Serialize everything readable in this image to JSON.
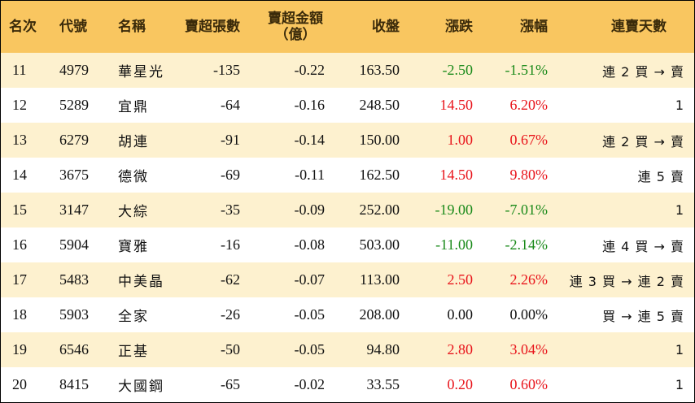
{
  "colors": {
    "header_bg": "#f9c660",
    "alt_row_bg": "#fdf1cf",
    "up": "#e8141b",
    "down": "#1a8a1a",
    "flat": "#111111"
  },
  "headers": {
    "rank": "名次",
    "code": "代號",
    "name": "名稱",
    "lots": "賣超張數",
    "amount_line1": "賣超金額",
    "amount_line2": "（億）",
    "close": "收盤",
    "change": "漲跌",
    "pct": "漲幅",
    "streak": "連賣天數"
  },
  "rows": [
    {
      "rank": "11",
      "code": "4979",
      "name": "華星光",
      "lots": "-135",
      "amount": "-0.22",
      "close": "163.50",
      "change": "-2.50",
      "pct": "-1.51%",
      "streak": "連 2 買 → 賣",
      "direction": "down"
    },
    {
      "rank": "12",
      "code": "5289",
      "name": "宜鼎",
      "lots": "-64",
      "amount": "-0.16",
      "close": "248.50",
      "change": "14.50",
      "pct": "6.20%",
      "streak": "1",
      "direction": "up"
    },
    {
      "rank": "13",
      "code": "6279",
      "name": "胡連",
      "lots": "-91",
      "amount": "-0.14",
      "close": "150.00",
      "change": "1.00",
      "pct": "0.67%",
      "streak": "連 2 買 → 賣",
      "direction": "up"
    },
    {
      "rank": "14",
      "code": "3675",
      "name": "德微",
      "lots": "-69",
      "amount": "-0.11",
      "close": "162.50",
      "change": "14.50",
      "pct": "9.80%",
      "streak": "連 5 賣",
      "direction": "up"
    },
    {
      "rank": "15",
      "code": "3147",
      "name": "大綜",
      "lots": "-35",
      "amount": "-0.09",
      "close": "252.00",
      "change": "-19.00",
      "pct": "-7.01%",
      "streak": "1",
      "direction": "down"
    },
    {
      "rank": "16",
      "code": "5904",
      "name": "寶雅",
      "lots": "-16",
      "amount": "-0.08",
      "close": "503.00",
      "change": "-11.00",
      "pct": "-2.14%",
      "streak": "連 4 買 → 賣",
      "direction": "down"
    },
    {
      "rank": "17",
      "code": "5483",
      "name": "中美晶",
      "lots": "-62",
      "amount": "-0.07",
      "close": "113.00",
      "change": "2.50",
      "pct": "2.26%",
      "streak": "連 3 買 → 連 2 賣",
      "direction": "up"
    },
    {
      "rank": "18",
      "code": "5903",
      "name": "全家",
      "lots": "-26",
      "amount": "-0.05",
      "close": "208.00",
      "change": "0.00",
      "pct": "0.00%",
      "streak": "買 → 連 5 賣",
      "direction": "flat"
    },
    {
      "rank": "19",
      "code": "6546",
      "name": "正基",
      "lots": "-50",
      "amount": "-0.05",
      "close": "94.80",
      "change": "2.80",
      "pct": "3.04%",
      "streak": "1",
      "direction": "up"
    },
    {
      "rank": "20",
      "code": "8415",
      "name": "大國鋼",
      "lots": "-65",
      "amount": "-0.02",
      "close": "33.55",
      "change": "0.20",
      "pct": "0.60%",
      "streak": "1",
      "direction": "up"
    }
  ]
}
